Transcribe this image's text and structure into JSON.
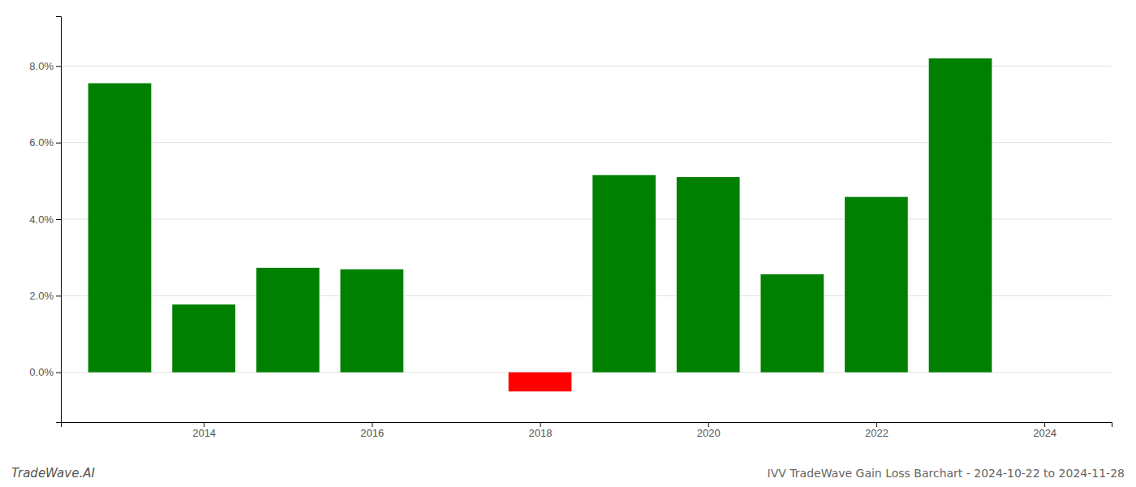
{
  "chart_data": {
    "type": "bar",
    "title": "IVV TradeWave Gain Loss Barchart - 2024-10-22 to 2024-11-28",
    "annotations": [
      "TradeWave.AI"
    ],
    "x": [
      2013,
      2014,
      2015,
      2016,
      2018,
      2019,
      2020,
      2021,
      2022,
      2023
    ],
    "values": [
      0.0755,
      0.0177,
      0.0273,
      0.0269,
      -0.005,
      0.0515,
      0.051,
      0.0256,
      0.0458,
      0.082
    ],
    "colors": [
      "#008000",
      "#008000",
      "#008000",
      "#008000",
      "#ff0000",
      "#008000",
      "#008000",
      "#008000",
      "#008000",
      "#008000"
    ],
    "xlim": [
      2012.3,
      2024.8
    ],
    "xticks": [
      2014,
      2016,
      2018,
      2020,
      2022,
      2024
    ],
    "ylim": [
      -0.013,
      0.093
    ],
    "yticks": [
      {
        "value": 0.0,
        "label": "0.0%"
      },
      {
        "value": 0.02,
        "label": "2.0%"
      },
      {
        "value": 0.04,
        "label": "4.0%"
      },
      {
        "value": 0.06,
        "label": "6.0%"
      },
      {
        "value": 0.08,
        "label": "8.0%"
      }
    ],
    "grid": true
  }
}
